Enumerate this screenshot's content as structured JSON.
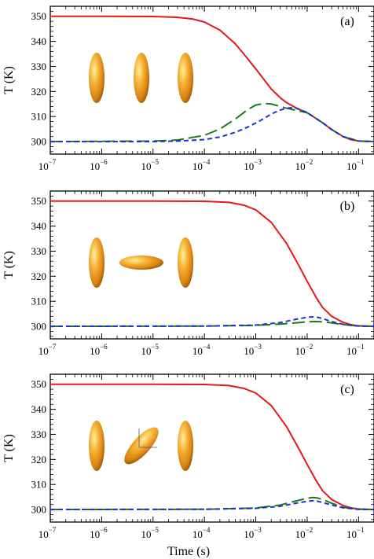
{
  "chart_data": [
    {
      "type": "line",
      "panel_label": "(a)",
      "ylabel": "T (K)",
      "xlabel": "",
      "xscale": "log",
      "xlim": [
        1e-07,
        0.2
      ],
      "ylim": [
        295,
        354
      ],
      "yticks": [
        300,
        310,
        320,
        330,
        340,
        350
      ],
      "xticks": [
        1e-07,
        1e-06,
        1e-05,
        0.0001,
        0.001,
        0.01,
        0.1
      ],
      "xtick_labels": [
        {
          "base": "10",
          "exp": "−7"
        },
        {
          "base": "10",
          "exp": "−6"
        },
        {
          "base": "10",
          "exp": "−5"
        },
        {
          "base": "10",
          "exp": "−4"
        },
        {
          "base": "10",
          "exp": "−3"
        },
        {
          "base": "10",
          "exp": "−2"
        },
        {
          "base": "10",
          "exp": "−1"
        }
      ],
      "inset": [
        "vertical",
        "vertical",
        "vertical"
      ],
      "series": [
        {
          "color": "#e8161b",
          "dash": "solid",
          "x": [
            1e-07,
            1e-06,
            1e-05,
            3e-05,
            6e-05,
            0.0001,
            0.0002,
            0.0004,
            0.0007,
            0.001,
            0.002,
            0.003,
            0.004,
            0.006,
            0.01,
            0.02,
            0.03,
            0.05,
            0.07,
            0.1,
            0.2
          ],
          "y": [
            350,
            350,
            349.9,
            349.6,
            348.9,
            347.7,
            344.5,
            339,
            333,
            329,
            321,
            317.5,
            315.5,
            313.5,
            311.5,
            307.5,
            304.8,
            302,
            300.8,
            300.2,
            300
          ]
        },
        {
          "color": "#1a7a1a",
          "dash": "long-dash",
          "x": [
            1e-07,
            1e-05,
            3e-05,
            0.0001,
            0.0002,
            0.0004,
            0.0007,
            0.001,
            0.0015,
            0.002,
            0.003,
            0.004,
            0.006,
            0.01,
            0.02,
            0.03,
            0.05,
            0.1,
            0.2
          ],
          "y": [
            300,
            300.2,
            300.6,
            302.5,
            305,
            309,
            312.8,
            314.6,
            315.2,
            315,
            314,
            313.3,
            312.5,
            311.5,
            307.5,
            304.8,
            302,
            300.2,
            300
          ]
        },
        {
          "color": "#1f2fd6",
          "dash": "short-dash",
          "x": [
            1e-07,
            1e-05,
            3e-05,
            0.0001,
            0.0002,
            0.0004,
            0.0007,
            0.001,
            0.0015,
            0.002,
            0.003,
            0.004,
            0.005,
            0.006,
            0.01,
            0.02,
            0.03,
            0.05,
            0.1,
            0.2
          ],
          "y": [
            300,
            300,
            300.2,
            300.8,
            301.8,
            303.7,
            305.8,
            307.4,
            309.4,
            311,
            312.6,
            313.3,
            313.5,
            313.4,
            311.6,
            307.5,
            304.8,
            302,
            300.2,
            300
          ]
        }
      ]
    },
    {
      "type": "line",
      "panel_label": "(b)",
      "ylabel": "T (K)",
      "xlabel": "",
      "xscale": "log",
      "xlim": [
        1e-07,
        0.2
      ],
      "ylim": [
        295,
        354
      ],
      "yticks": [
        300,
        310,
        320,
        330,
        340,
        350
      ],
      "xticks": [
        1e-07,
        1e-06,
        1e-05,
        0.0001,
        0.001,
        0.01,
        0.1
      ],
      "xtick_labels": [
        {
          "base": "10",
          "exp": "−7"
        },
        {
          "base": "10",
          "exp": "−6"
        },
        {
          "base": "10",
          "exp": "−5"
        },
        {
          "base": "10",
          "exp": "−4"
        },
        {
          "base": "10",
          "exp": "−3"
        },
        {
          "base": "10",
          "exp": "−2"
        },
        {
          "base": "10",
          "exp": "−1"
        }
      ],
      "inset": [
        "vertical",
        "horizontal",
        "vertical"
      ],
      "series": [
        {
          "color": "#e8161b",
          "dash": "solid",
          "x": [
            1e-07,
            1e-05,
            0.0001,
            0.0003,
            0.0006,
            0.001,
            0.002,
            0.004,
            0.007,
            0.01,
            0.015,
            0.02,
            0.03,
            0.05,
            0.07,
            0.1,
            0.2
          ],
          "y": [
            350,
            350,
            349.9,
            349.5,
            348.3,
            346.5,
            341.5,
            333,
            324,
            318,
            311.5,
            307.5,
            304,
            301.6,
            300.7,
            300.2,
            300
          ]
        },
        {
          "color": "#1a7a1a",
          "dash": "long-dash",
          "x": [
            1e-07,
            0.0001,
            0.001,
            0.003,
            0.006,
            0.01,
            0.015,
            0.02,
            0.03,
            0.05,
            0.1,
            0.2
          ],
          "y": [
            300,
            300.1,
            300.4,
            300.9,
            301.4,
            301.8,
            301.9,
            301.8,
            301.4,
            300.7,
            300.1,
            300
          ]
        },
        {
          "color": "#1f2fd6",
          "dash": "short-dash",
          "x": [
            1e-07,
            0.0001,
            0.001,
            0.003,
            0.006,
            0.01,
            0.013,
            0.016,
            0.02,
            0.03,
            0.05,
            0.1,
            0.2
          ],
          "y": [
            300,
            300.1,
            300.5,
            301.5,
            302.8,
            303.6,
            303.8,
            303.6,
            303.1,
            301.9,
            300.8,
            300.1,
            300
          ]
        }
      ]
    },
    {
      "type": "line",
      "panel_label": "(c)",
      "ylabel": "T (K)",
      "xlabel": "Time (s)",
      "xscale": "log",
      "xlim": [
        1e-07,
        0.2
      ],
      "ylim": [
        295,
        354
      ],
      "yticks": [
        300,
        310,
        320,
        330,
        340,
        350
      ],
      "xticks": [
        1e-07,
        1e-06,
        1e-05,
        0.0001,
        0.001,
        0.01,
        0.1
      ],
      "xtick_labels": [
        {
          "base": "10",
          "exp": "−7"
        },
        {
          "base": "10",
          "exp": "−6"
        },
        {
          "base": "10",
          "exp": "−5"
        },
        {
          "base": "10",
          "exp": "−4"
        },
        {
          "base": "10",
          "exp": "−3"
        },
        {
          "base": "10",
          "exp": "−2"
        },
        {
          "base": "10",
          "exp": "−1"
        }
      ],
      "inset": [
        "vertical",
        "tilted",
        "vertical"
      ],
      "series": [
        {
          "color": "#e8161b",
          "dash": "solid",
          "x": [
            1e-07,
            1e-05,
            0.0001,
            0.0003,
            0.0006,
            0.001,
            0.002,
            0.004,
            0.007,
            0.01,
            0.015,
            0.02,
            0.03,
            0.05,
            0.07,
            0.1,
            0.2
          ],
          "y": [
            350,
            350,
            349.9,
            349.5,
            348.3,
            346.5,
            341.5,
            333,
            324,
            318,
            311.5,
            307.5,
            304,
            301.6,
            300.7,
            300.2,
            300
          ]
        },
        {
          "color": "#1a7a1a",
          "dash": "long-dash",
          "x": [
            1e-07,
            0.0001,
            0.001,
            0.003,
            0.006,
            0.01,
            0.013,
            0.016,
            0.02,
            0.03,
            0.05,
            0.1,
            0.2
          ],
          "y": [
            300,
            300.1,
            300.6,
            301.8,
            303.4,
            304.5,
            304.8,
            304.6,
            304,
            302.5,
            300.9,
            300.1,
            300
          ]
        },
        {
          "color": "#1f2fd6",
          "dash": "short-dash",
          "x": [
            1e-07,
            0.0001,
            0.001,
            0.003,
            0.006,
            0.01,
            0.013,
            0.016,
            0.02,
            0.03,
            0.05,
            0.1,
            0.2
          ],
          "y": [
            300,
            300.1,
            300.5,
            301.3,
            302.5,
            303.3,
            303.5,
            303.3,
            302.8,
            301.8,
            300.7,
            300.1,
            300
          ]
        }
      ]
    }
  ]
}
